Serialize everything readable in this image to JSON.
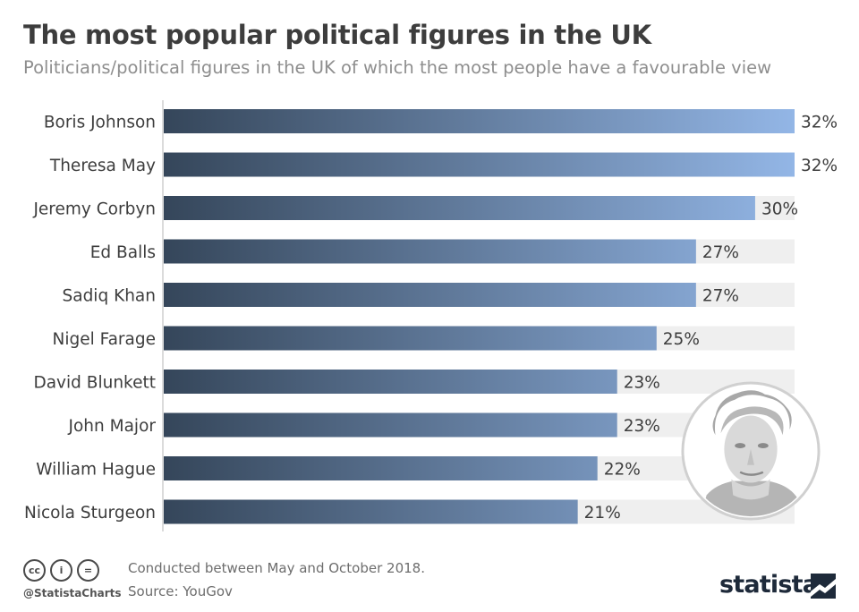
{
  "header": {
    "title": "The most popular political figures in the UK",
    "subtitle": "Politicians/political figures in the UK of which the most people have a favourable view"
  },
  "chart_data": {
    "type": "bar",
    "orientation": "horizontal",
    "categories": [
      "Boris Johnson",
      "Theresa May",
      "Jeremy Corbyn",
      "Ed Balls",
      "Sadiq Khan",
      "Nigel Farage",
      "David Blunkett",
      "John Major",
      "William Hague",
      "Nicola Sturgeon"
    ],
    "values": [
      32,
      32,
      30,
      27,
      27,
      25,
      23,
      23,
      22,
      21
    ],
    "value_labels": [
      "32%",
      "32%",
      "30%",
      "27%",
      "27%",
      "25%",
      "23%",
      "23%",
      "22%",
      "21%"
    ],
    "xlim": [
      0,
      32
    ],
    "grid": false,
    "colors": {
      "bar_start": "#35465a",
      "bar_end": "#93b6e6",
      "band": "#efefef",
      "axis": "#cfcfcf"
    }
  },
  "footer": {
    "cc_icons": [
      "cc-icon",
      "by-icon",
      "nd-icon"
    ],
    "cc_glyphs": [
      "cc",
      "i",
      "="
    ],
    "handle": "@StatistaCharts",
    "note": "Conducted between May and October 2018.",
    "source": "Source: YouGov",
    "brand": "statista"
  }
}
